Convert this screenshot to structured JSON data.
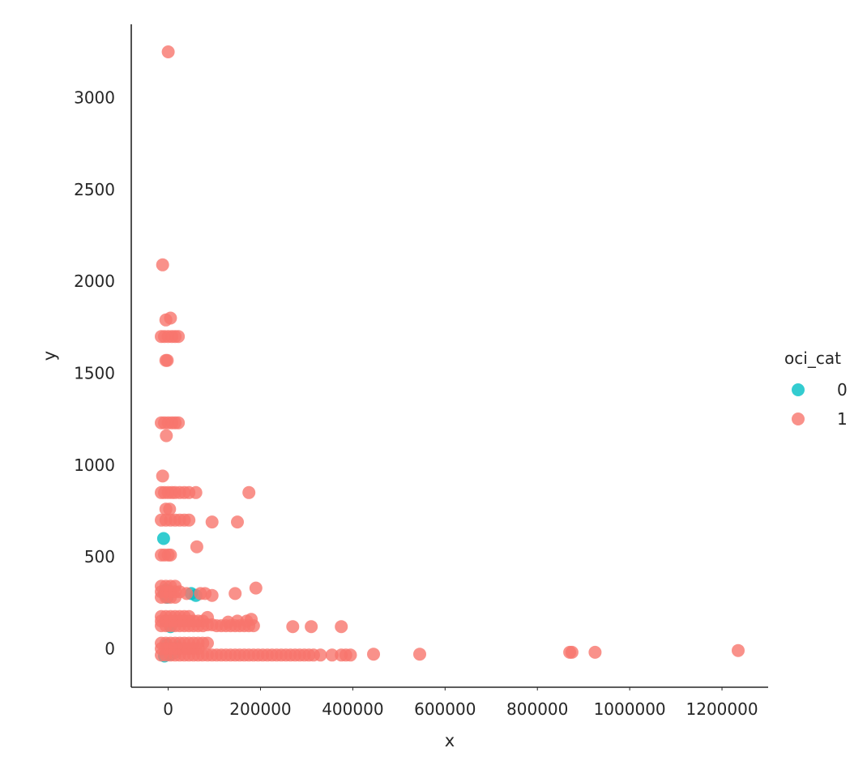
{
  "chart_data": {
    "type": "scatter",
    "title": "",
    "xlabel": "x",
    "ylabel": "y",
    "xlim": [
      -80000,
      1300000
    ],
    "ylim": [
      -210,
      3400
    ],
    "xticks": [
      0,
      200000,
      400000,
      600000,
      800000,
      1000000,
      1200000
    ],
    "yticks": [
      0,
      500,
      1000,
      1500,
      2000,
      2500,
      3000
    ],
    "grid": false,
    "legend": {
      "title": "oci_cat",
      "placement": "right",
      "entries": [
        {
          "label": "0",
          "color": "#00BFC4"
        },
        {
          "label": "1",
          "color": "#F8766D"
        }
      ]
    },
    "series": [
      {
        "name": "0",
        "color": "#00BFC4",
        "points": [
          [
            -10000,
            600
          ],
          [
            -8000,
            300
          ],
          [
            -5000,
            320
          ],
          [
            -2000,
            280
          ],
          [
            3000,
            310
          ],
          [
            50000,
            300
          ],
          [
            60000,
            290
          ],
          [
            -5000,
            150
          ],
          [
            5000,
            120
          ],
          [
            10000,
            140
          ],
          [
            -3000,
            20
          ],
          [
            2000,
            -10
          ],
          [
            5000,
            -30
          ],
          [
            -8000,
            -40
          ],
          [
            15000,
            -20
          ],
          [
            20000,
            10
          ]
        ]
      },
      {
        "name": "1",
        "color": "#F8766D",
        "points": [
          [
            0,
            3250
          ],
          [
            -12000,
            2090
          ],
          [
            -5000,
            1790
          ],
          [
            5000,
            1800
          ],
          [
            -15000,
            1700
          ],
          [
            -8000,
            1700
          ],
          [
            0,
            1700
          ],
          [
            8000,
            1700
          ],
          [
            15000,
            1700
          ],
          [
            22000,
            1700
          ],
          [
            -5000,
            1570
          ],
          [
            -2000,
            1570
          ],
          [
            -15000,
            1230
          ],
          [
            -8000,
            1230
          ],
          [
            0,
            1230
          ],
          [
            8000,
            1230
          ],
          [
            15000,
            1230
          ],
          [
            22000,
            1230
          ],
          [
            -4000,
            1160
          ],
          [
            -12000,
            940
          ],
          [
            -15000,
            850
          ],
          [
            -8000,
            850
          ],
          [
            0,
            850
          ],
          [
            8000,
            850
          ],
          [
            15000,
            850
          ],
          [
            25000,
            850
          ],
          [
            35000,
            850
          ],
          [
            45000,
            850
          ],
          [
            60000,
            850
          ],
          [
            175000,
            850
          ],
          [
            -5000,
            760
          ],
          [
            3000,
            760
          ],
          [
            -15000,
            700
          ],
          [
            -5000,
            700
          ],
          [
            5000,
            700
          ],
          [
            15000,
            700
          ],
          [
            25000,
            700
          ],
          [
            35000,
            700
          ],
          [
            45000,
            700
          ],
          [
            95000,
            690
          ],
          [
            150000,
            690
          ],
          [
            62000,
            555
          ],
          [
            -15000,
            510
          ],
          [
            -8000,
            510
          ],
          [
            0,
            510
          ],
          [
            5000,
            510
          ],
          [
            -15000,
            340
          ],
          [
            -5000,
            340
          ],
          [
            5000,
            340
          ],
          [
            15000,
            340
          ],
          [
            -15000,
            310
          ],
          [
            -5000,
            310
          ],
          [
            5000,
            310
          ],
          [
            15000,
            310
          ],
          [
            25000,
            310
          ],
          [
            -15000,
            280
          ],
          [
            -5000,
            280
          ],
          [
            5000,
            280
          ],
          [
            15000,
            280
          ],
          [
            40000,
            300
          ],
          [
            70000,
            300
          ],
          [
            80000,
            300
          ],
          [
            95000,
            290
          ],
          [
            145000,
            300
          ],
          [
            190000,
            330
          ],
          [
            -15000,
            175
          ],
          [
            -5000,
            175
          ],
          [
            5000,
            175
          ],
          [
            15000,
            175
          ],
          [
            25000,
            175
          ],
          [
            35000,
            175
          ],
          [
            45000,
            175
          ],
          [
            -15000,
            150
          ],
          [
            -5000,
            150
          ],
          [
            5000,
            150
          ],
          [
            15000,
            150
          ],
          [
            25000,
            150
          ],
          [
            35000,
            150
          ],
          [
            45000,
            150
          ],
          [
            55000,
            150
          ],
          [
            65000,
            150
          ],
          [
            75000,
            150
          ],
          [
            -15000,
            125
          ],
          [
            -5000,
            125
          ],
          [
            5000,
            125
          ],
          [
            15000,
            125
          ],
          [
            25000,
            125
          ],
          [
            35000,
            125
          ],
          [
            45000,
            125
          ],
          [
            55000,
            125
          ],
          [
            65000,
            125
          ],
          [
            75000,
            125
          ],
          [
            85000,
            130
          ],
          [
            95000,
            130
          ],
          [
            105000,
            125
          ],
          [
            115000,
            125
          ],
          [
            125000,
            125
          ],
          [
            135000,
            125
          ],
          [
            145000,
            125
          ],
          [
            155000,
            125
          ],
          [
            165000,
            125
          ],
          [
            175000,
            125
          ],
          [
            185000,
            125
          ],
          [
            85000,
            170
          ],
          [
            130000,
            145
          ],
          [
            150000,
            150
          ],
          [
            170000,
            150
          ],
          [
            180000,
            160
          ],
          [
            270000,
            120
          ],
          [
            310000,
            120
          ],
          [
            375000,
            120
          ],
          [
            -15000,
            30
          ],
          [
            -5000,
            30
          ],
          [
            5000,
            30
          ],
          [
            15000,
            30
          ],
          [
            25000,
            30
          ],
          [
            35000,
            30
          ],
          [
            45000,
            30
          ],
          [
            55000,
            30
          ],
          [
            65000,
            30
          ],
          [
            75000,
            30
          ],
          [
            85000,
            30
          ],
          [
            -15000,
            0
          ],
          [
            -5000,
            0
          ],
          [
            5000,
            0
          ],
          [
            15000,
            0
          ],
          [
            25000,
            0
          ],
          [
            35000,
            0
          ],
          [
            45000,
            0
          ],
          [
            55000,
            0
          ],
          [
            65000,
            0
          ],
          [
            -15000,
            -35
          ],
          [
            -5000,
            -35
          ],
          [
            5000,
            -35
          ],
          [
            15000,
            -35
          ],
          [
            25000,
            -35
          ],
          [
            35000,
            -35
          ],
          [
            45000,
            -35
          ],
          [
            55000,
            -35
          ],
          [
            65000,
            -35
          ],
          [
            75000,
            -35
          ],
          [
            85000,
            -35
          ],
          [
            95000,
            -35
          ],
          [
            105000,
            -35
          ],
          [
            115000,
            -35
          ],
          [
            125000,
            -35
          ],
          [
            135000,
            -35
          ],
          [
            145000,
            -35
          ],
          [
            155000,
            -35
          ],
          [
            165000,
            -35
          ],
          [
            175000,
            -35
          ],
          [
            185000,
            -35
          ],
          [
            195000,
            -35
          ],
          [
            205000,
            -35
          ],
          [
            215000,
            -35
          ],
          [
            225000,
            -35
          ],
          [
            235000,
            -35
          ],
          [
            245000,
            -35
          ],
          [
            255000,
            -35
          ],
          [
            265000,
            -35
          ],
          [
            275000,
            -35
          ],
          [
            285000,
            -35
          ],
          [
            295000,
            -35
          ],
          [
            305000,
            -35
          ],
          [
            315000,
            -35
          ],
          [
            330000,
            -35
          ],
          [
            355000,
            -35
          ],
          [
            375000,
            -35
          ],
          [
            385000,
            -35
          ],
          [
            395000,
            -35
          ],
          [
            445000,
            -30
          ],
          [
            545000,
            -30
          ],
          [
            870000,
            -20
          ],
          [
            875000,
            -20
          ],
          [
            925000,
            -20
          ],
          [
            1235000,
            -10
          ]
        ]
      }
    ]
  }
}
